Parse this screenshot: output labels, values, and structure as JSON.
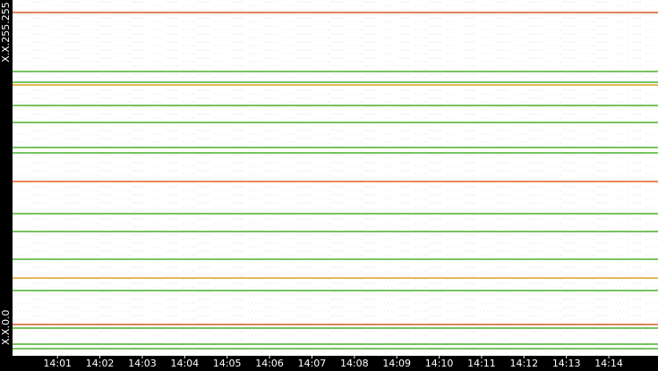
{
  "chart_data": {
    "type": "hlines",
    "xlim": [
      839.94,
      855.16
    ],
    "xticks": [
      {
        "value": 841,
        "label": "14:01"
      },
      {
        "value": 842,
        "label": "14:02"
      },
      {
        "value": 843,
        "label": "14:03"
      },
      {
        "value": 844,
        "label": "14:04"
      },
      {
        "value": 845,
        "label": "14:05"
      },
      {
        "value": 846,
        "label": "14:06"
      },
      {
        "value": 847,
        "label": "14:07"
      },
      {
        "value": 848,
        "label": "14:08"
      },
      {
        "value": 849,
        "label": "14:09"
      },
      {
        "value": 850,
        "label": "14:10"
      },
      {
        "value": 851,
        "label": "14:11"
      },
      {
        "value": 852,
        "label": "14:12"
      },
      {
        "value": 853,
        "label": "14:13"
      },
      {
        "value": 854,
        "label": "14:14"
      }
    ],
    "ylim": [
      0,
      65535
    ],
    "yticks": [
      {
        "value": 0,
        "label": "X.X.0.0"
      },
      {
        "value": 65535,
        "label": "X.X.255.255"
      }
    ],
    "lines": [
      {
        "y": 63229,
        "color": "#d9582a"
      },
      {
        "y": 52361,
        "color": "#4caf2f"
      },
      {
        "y": 50385,
        "color": "#4caf2f"
      },
      {
        "y": 49891,
        "color": "#e0a020"
      },
      {
        "y": 46105,
        "color": "#4caf2f"
      },
      {
        "y": 42976,
        "color": "#4caf2f"
      },
      {
        "y": 38366,
        "color": "#4caf2f"
      },
      {
        "y": 37378,
        "color": "#4caf2f"
      },
      {
        "y": 32109,
        "color": "#e0602a"
      },
      {
        "y": 26181,
        "color": "#4caf2f"
      },
      {
        "y": 22888,
        "color": "#4caf2f"
      },
      {
        "y": 17784,
        "color": "#4caf2f"
      },
      {
        "y": 14325,
        "color": "#d8a020"
      },
      {
        "y": 12020,
        "color": "#4caf2f"
      },
      {
        "y": 5763,
        "color": "#d9582a"
      },
      {
        "y": 5104,
        "color": "#4caf2f"
      },
      {
        "y": 2141,
        "color": "#4caf2f"
      },
      {
        "y": 1317,
        "color": "#4caf2f"
      }
    ]
  }
}
